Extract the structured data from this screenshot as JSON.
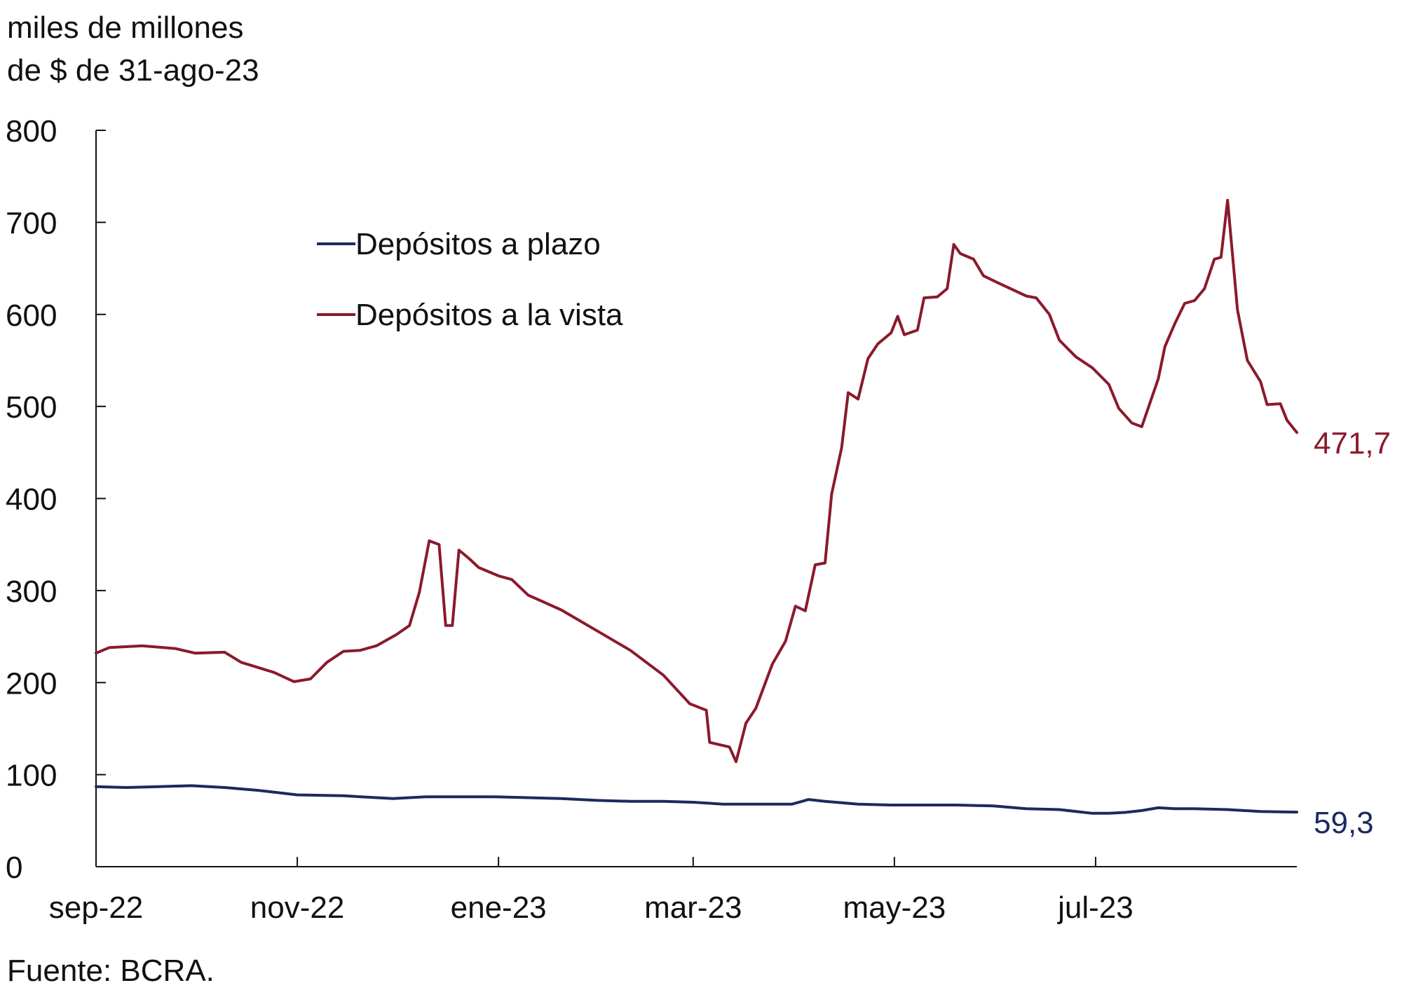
{
  "chart_data": {
    "type": "line",
    "unit_label": [
      "miles de millones",
      "de $ de 31-ago-23"
    ],
    "source": "Fuente: BCRA.",
    "ylim": [
      0,
      800
    ],
    "yticks": [
      "0",
      "100",
      "200",
      "300",
      "400",
      "500",
      "600",
      "700",
      "800"
    ],
    "ytick_values": [
      0,
      100,
      200,
      300,
      400,
      500,
      600,
      700,
      800
    ],
    "xlim": [
      "2022-09-01",
      "2023-08-31"
    ],
    "xticks": [
      {
        "label": "sep-22",
        "date": "2022-09-01"
      },
      {
        "label": "nov-22",
        "date": "2022-11-01"
      },
      {
        "label": "ene-23",
        "date": "2023-01-01"
      },
      {
        "label": "mar-23",
        "date": "2023-03-01"
      },
      {
        "label": "may-23",
        "date": "2023-05-01"
      },
      {
        "label": "jul-23",
        "date": "2023-07-01"
      }
    ],
    "legend_placement": "upper-left",
    "grid": false,
    "series": [
      {
        "name": "Depósitos a plazo",
        "color": "#1b2a5e",
        "end_label": "59,3",
        "points": [
          [
            "2022-09-01",
            87
          ],
          [
            "2022-09-10",
            86
          ],
          [
            "2022-09-20",
            87
          ],
          [
            "2022-09-30",
            88
          ],
          [
            "2022-10-10",
            86
          ],
          [
            "2022-10-20",
            83
          ],
          [
            "2022-11-01",
            78
          ],
          [
            "2022-11-15",
            77
          ],
          [
            "2022-11-30",
            74
          ],
          [
            "2022-12-10",
            76
          ],
          [
            "2022-12-20",
            76
          ],
          [
            "2022-12-31",
            76
          ],
          [
            "2023-01-10",
            75
          ],
          [
            "2023-01-20",
            74
          ],
          [
            "2023-01-31",
            72
          ],
          [
            "2023-02-10",
            71
          ],
          [
            "2023-02-20",
            71
          ],
          [
            "2023-03-01",
            70
          ],
          [
            "2023-03-10",
            68
          ],
          [
            "2023-03-20",
            68
          ],
          [
            "2023-03-31",
            68
          ],
          [
            "2023-04-05",
            73
          ],
          [
            "2023-04-10",
            71
          ],
          [
            "2023-04-20",
            68
          ],
          [
            "2023-04-30",
            67
          ],
          [
            "2023-05-10",
            67
          ],
          [
            "2023-05-20",
            67
          ],
          [
            "2023-05-31",
            66
          ],
          [
            "2023-06-10",
            63
          ],
          [
            "2023-06-20",
            62
          ],
          [
            "2023-06-30",
            58
          ],
          [
            "2023-07-05",
            58
          ],
          [
            "2023-07-10",
            59
          ],
          [
            "2023-07-15",
            61
          ],
          [
            "2023-07-20",
            64
          ],
          [
            "2023-07-25",
            63
          ],
          [
            "2023-07-31",
            63
          ],
          [
            "2023-08-10",
            62
          ],
          [
            "2023-08-20",
            60
          ],
          [
            "2023-08-31",
            59.3
          ]
        ]
      },
      {
        "name": "Depósitos a la vista",
        "color": "#8b1a2b",
        "end_label": "471,7",
        "points": [
          [
            "2022-09-01",
            232
          ],
          [
            "2022-09-05",
            238
          ],
          [
            "2022-09-15",
            240
          ],
          [
            "2022-09-25",
            237
          ],
          [
            "2022-10-01",
            232
          ],
          [
            "2022-10-10",
            233
          ],
          [
            "2022-10-15",
            222
          ],
          [
            "2022-10-25",
            211
          ],
          [
            "2022-10-31",
            201
          ],
          [
            "2022-11-05",
            204
          ],
          [
            "2022-11-10",
            222
          ],
          [
            "2022-11-15",
            234
          ],
          [
            "2022-11-20",
            235
          ],
          [
            "2022-11-25",
            240
          ],
          [
            "2022-12-01",
            252
          ],
          [
            "2022-12-05",
            262
          ],
          [
            "2022-12-08",
            298
          ],
          [
            "2022-12-11",
            354
          ],
          [
            "2022-12-14",
            350
          ],
          [
            "2022-12-16",
            262
          ],
          [
            "2022-12-18",
            262
          ],
          [
            "2022-12-20",
            344
          ],
          [
            "2022-12-23",
            335
          ],
          [
            "2022-12-26",
            325
          ],
          [
            "2023-01-01",
            316
          ],
          [
            "2023-01-05",
            312
          ],
          [
            "2023-01-10",
            295
          ],
          [
            "2023-01-20",
            279
          ],
          [
            "2023-01-31",
            256
          ],
          [
            "2023-02-10",
            235
          ],
          [
            "2023-02-20",
            208
          ],
          [
            "2023-02-28",
            177
          ],
          [
            "2023-03-05",
            170
          ],
          [
            "2023-03-06",
            135
          ],
          [
            "2023-03-12",
            130
          ],
          [
            "2023-03-14",
            114
          ],
          [
            "2023-03-17",
            156
          ],
          [
            "2023-03-20",
            172
          ],
          [
            "2023-03-25",
            220
          ],
          [
            "2023-03-29",
            245
          ],
          [
            "2023-04-01",
            283
          ],
          [
            "2023-04-04",
            278
          ],
          [
            "2023-04-07",
            328
          ],
          [
            "2023-04-10",
            330
          ],
          [
            "2023-04-12",
            405
          ],
          [
            "2023-04-15",
            455
          ],
          [
            "2023-04-17",
            515
          ],
          [
            "2023-04-20",
            508
          ],
          [
            "2023-04-23",
            552
          ],
          [
            "2023-04-26",
            568
          ],
          [
            "2023-04-30",
            580
          ],
          [
            "2023-05-02",
            598
          ],
          [
            "2023-05-04",
            578
          ],
          [
            "2023-05-08",
            583
          ],
          [
            "2023-05-10",
            618
          ],
          [
            "2023-05-14",
            619
          ],
          [
            "2023-05-17",
            628
          ],
          [
            "2023-05-19",
            676
          ],
          [
            "2023-05-21",
            666
          ],
          [
            "2023-05-25",
            660
          ],
          [
            "2023-05-28",
            642
          ],
          [
            "2023-06-01",
            635
          ],
          [
            "2023-06-10",
            620
          ],
          [
            "2023-06-13",
            618
          ],
          [
            "2023-06-17",
            600
          ],
          [
            "2023-06-20",
            572
          ],
          [
            "2023-06-25",
            554
          ],
          [
            "2023-06-30",
            542
          ],
          [
            "2023-07-05",
            524
          ],
          [
            "2023-07-08",
            498
          ],
          [
            "2023-07-12",
            482
          ],
          [
            "2023-07-15",
            478
          ],
          [
            "2023-07-20",
            530
          ],
          [
            "2023-07-22",
            565
          ],
          [
            "2023-07-25",
            590
          ],
          [
            "2023-07-28",
            612
          ],
          [
            "2023-07-31",
            615
          ],
          [
            "2023-08-03",
            628
          ],
          [
            "2023-08-06",
            660
          ],
          [
            "2023-08-08",
            662
          ],
          [
            "2023-08-10",
            724
          ],
          [
            "2023-08-13",
            605
          ],
          [
            "2023-08-16",
            550
          ],
          [
            "2023-08-20",
            527
          ],
          [
            "2023-08-22",
            502
          ],
          [
            "2023-08-26",
            503
          ],
          [
            "2023-08-28",
            485
          ],
          [
            "2023-08-31",
            471.7
          ]
        ]
      }
    ]
  }
}
